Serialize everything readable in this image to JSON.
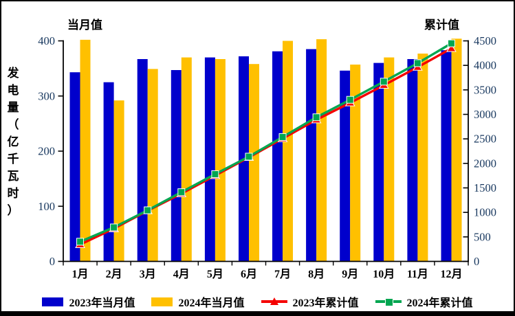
{
  "titles": {
    "left_axis_header": "当月值",
    "right_axis_header": "累计值"
  },
  "colors": {
    "bar_2023": "#0000CC",
    "bar_2024": "#FFC000",
    "line_2023": "#F40000",
    "line_2024": "#00A651",
    "tick_text": "#17375E",
    "axis_line": "#000000",
    "frame": "#000000"
  },
  "chart_data": {
    "type": "bar",
    "title": "",
    "ylabel": "发电量（亿千瓦时）",
    "grid": false,
    "legend_position": "bottom",
    "categories": [
      "1月",
      "2月",
      "3月",
      "4月",
      "5月",
      "6月",
      "7月",
      "8月",
      "9月",
      "10月",
      "11月",
      "12月"
    ],
    "left_axis": {
      "header": "当月值",
      "min": 0,
      "max": 400,
      "step": 100,
      "ticks": [
        0,
        100,
        200,
        300,
        400
      ]
    },
    "right_axis": {
      "header": "累计值",
      "min": 0,
      "max": 4500,
      "step": 500,
      "ticks": [
        0,
        500,
        1000,
        1500,
        2000,
        2500,
        3000,
        3500,
        4000,
        4500
      ]
    },
    "series": [
      {
        "name": "2023年当月值",
        "type": "bar",
        "axis": "left",
        "color": "#0000CC",
        "marker": "none",
        "values": [
          343,
          325,
          367,
          347,
          370,
          372,
          381,
          385,
          346,
          360,
          367,
          383
        ]
      },
      {
        "name": "2024年当月值",
        "type": "bar",
        "axis": "left",
        "color": "#FFC000",
        "marker": "none",
        "values": [
          402,
          292,
          349,
          370,
          367,
          358,
          400,
          403,
          357,
          370,
          377,
          404
        ]
      },
      {
        "name": "2023年累计值",
        "type": "line",
        "axis": "right",
        "color": "#F40000",
        "marker": "triangle",
        "values": [
          343,
          668,
          1035,
          1382,
          1752,
          2124,
          2505,
          2890,
          3236,
          3596,
          3963,
          4346
        ]
      },
      {
        "name": "2024年累计值",
        "type": "line",
        "axis": "right",
        "color": "#00A651",
        "marker": "square",
        "values": [
          402,
          694,
          1043,
          1413,
          1780,
          2138,
          2538,
          2941,
          3298,
          3668,
          4045,
          4449
        ]
      }
    ]
  },
  "legend": {
    "items": [
      {
        "label": "2023年当月值"
      },
      {
        "label": "2024年当月值"
      },
      {
        "label": "2023年累计值"
      },
      {
        "label": "2024年累计值"
      }
    ]
  }
}
